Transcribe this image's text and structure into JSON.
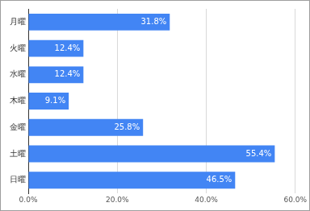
{
  "chart_data": {
    "type": "bar",
    "orientation": "horizontal",
    "categories": [
      "月曜",
      "火曜",
      "水曜",
      "木曜",
      "金曜",
      "土曜",
      "日曜"
    ],
    "values": [
      31.8,
      12.4,
      12.4,
      9.1,
      25.8,
      55.4,
      46.5
    ],
    "value_labels": [
      "31.8%",
      "12.4%",
      "12.4%",
      "9.1%",
      "25.8%",
      "55.4%",
      "46.5%"
    ],
    "data_labels": true,
    "color": "#4285f4",
    "xlim": [
      0,
      60
    ],
    "xticks": [
      {
        "value": 0,
        "label": "0.0%"
      },
      {
        "value": 20,
        "label": "20.0%"
      },
      {
        "value": 40,
        "label": "40.0%"
      },
      {
        "value": 60,
        "label": "60.0%"
      }
    ],
    "grid": true
  }
}
